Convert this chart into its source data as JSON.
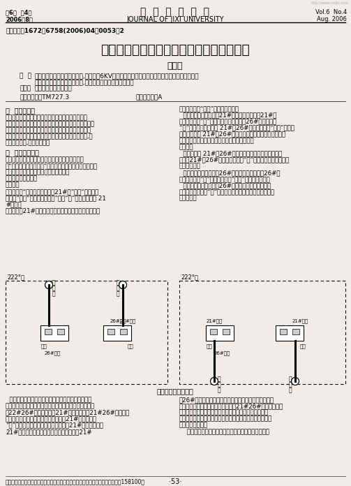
{
  "page_width": 5.03,
  "page_height": 6.96,
  "dpi": 100,
  "bg_color": "#f0ede8",
  "header_left_top": "第6卷  第4期",
  "header_left_bottom": "2006年8月",
  "header_center_top": "鸡  西  大  学  学  报",
  "header_center_bottom": "JOURNAL OF JIXI UNIVERSITY",
  "header_right_top": "Vol.6  No.4",
  "header_right_bottom": "Aug. 2006",
  "article_id": "文章编号：1672－6758(2006)04－0053－2",
  "title": "双电源供电高压进线柜机械互锁的改进方案",
  "author": "张加强",
  "abstract_label": "摘  要",
  "abstract_text": "：从安全管理和技术两个方面,对配电所6KV高压双电源供电的运维操作机械互锁回路的原理、动\n能、技术等进行了探讨和改革,对防误问题提出了一些见解。",
  "keywords_label": "关键词",
  "keywords_text": "：防误操作；机械互锁",
  "clc_label": "中图分类号：TM727.3",
  "doc_id_label": "文献标识码：A",
  "section1_title": "一  问题的提出",
  "section1_lines": [
    "为了确保配电所的安全运行，提高供电可靠性，防止",
    "双电源进线并用事故的发生，在操作隔离开关上设置机械",
    "互锁，是防止误操作带事发生的有效而可行的手段。现",
    "在高压开关采用的机械互锁是靠机械程序锁严实现的,其",
    "操作程序复杂,易发生事故。"
  ],
  "section2_title": "二  分析问题原因",
  "section2_lines": [
    "我们先来看看改进操作机构前使用这种机械程序锁",
    "的“高压侧电源操作程序”，从而了解一下这种机械程序锁",
    "的开锁和关锁程序，以便找到事故原因。",
    "高压侧电源操作程序",
    "分闸部分",
    "第一步：将“分闸指令牌（绿色21#）”插入“分合闸转",
    "换开关”，将“分合闸转换开关”转到“分”的位置，取下 21",
    "#饰匙。",
    "第二步：屆21#饰匙放入母刀闸饰匙孔，转至分的位置，"
  ],
  "right_col_lines": [
    "微微回转拉动“插销”，拉下母刀闸。",
    "  第三步：取下母刀闸上21#饰匙插入线刀闸上21#销",
    "孔，并把转至“分”的位置，检查线刀闸上26#饰匙是否在",
    "“分”的位置，微微回转 21#、26#饰匙，再拉动“插销”，拉下",
    "线刀闸，取下 21#、26#饰匙。（一面高压开关柜分闸部分",
    "完成，下面再合另一面高压开关柜的隔离开关）",
    "合闸部分",
    "  第四步：将 21#、26#饰匙插入另一面高压开关柜的线",
    "刀闸上21#、26#销孔，并扭转至“合”的位置，拉开插销，推",
    "合上线刀闸。",
    "  第五步：取下线刀闸上26#饰匙，放人母刀闸上26#销",
    "孔，并扭转至“合”的位置，拉出“插销”并合上母刀闸。",
    "  第六步：取下母刀闸上26#饰匙，放人分合闸转换开",
    "关上，并把转换至“合”位置立即松手，转换开关自动回弹至",
    "垂直位置。"
  ],
  "diagram_title": "高压隔离开关示意图",
  "left_box_label": "222°盘",
  "right_box_label": "222°盘",
  "caption_lines": [
    "  如图所示为这种隔离开关的示意图，图中可以看出隔",
    "离开关的线刀闸和母刀闸各带一把锁，线刀闸上有两个锁",
    "孤22#26#，母刀闸上有21#销孔，分别用21#26#饰匙去开",
    "这四把锁。分闸部分要先断开母刀闸，21#饰匙必须在",
    "“分”的位置（否则将无法插入线刀闸的21#销孔），取下",
    "21#饰匙插入线刀闸，，线刀闸的锁必须用21#"
  ],
  "caption_right_lines": [
    "和26#饰匙相互配合才能拉开插销断开线刀闸，合闸部分",
    "先合线刀闸，再合母刀闸，同样需要21#26#饰匙密切配合",
    "才能拉开插销合闸刀闸，可以看出这种机械程序必须密切",
    "配合，只要有一步没卡住，其结的步骤就无法进行下去，从",
    "而导致事故发生。",
    "    操作人员要熟记复杂的高压侧电操作程序，以便随时"
  ],
  "footer_left": "作者简介：张加强，助理工程师，鸡西矿业集团荣华矿机电科，鸡西。邮政编码：158100。",
  "footer_page": "·53·",
  "watermark": "http://www.cnqtz.com"
}
